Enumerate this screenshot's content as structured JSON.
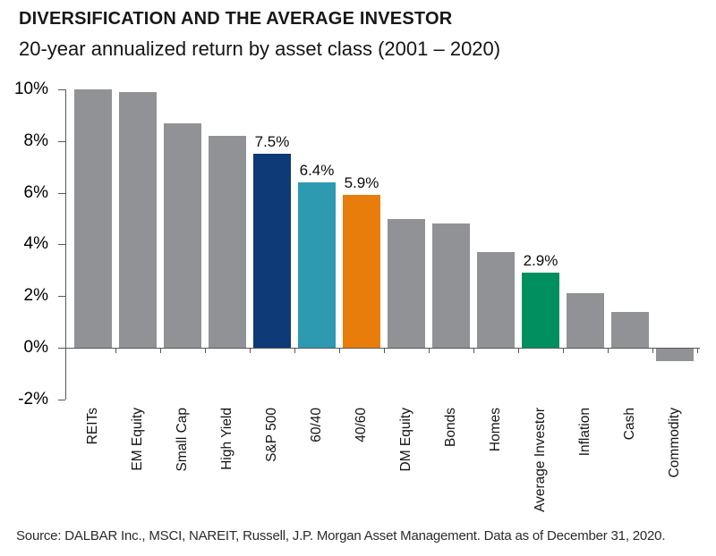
{
  "header": {
    "title": "DIVERSIFICATION AND THE AVERAGE INVESTOR",
    "subtitle": "20-year annualized return by asset class (2001 – 2020)"
  },
  "footer": {
    "source": "Source: DALBAR Inc., MSCI, NAREIT, Russell, J.P. Morgan Asset Management. Data as of December 31, 2020."
  },
  "colors": {
    "default_bar": "#909295",
    "sp500_navy": "#0e3a77",
    "sixty_forty_teal": "#2d9ab1",
    "forty_sixty_orange": "#e87d0c",
    "average_investor_green": "#008f5f",
    "axis": "#565759",
    "text": "#141414"
  },
  "chart_data": {
    "type": "bar",
    "title": "DIVERSIFICATION AND THE AVERAGE INVESTOR",
    "subtitle": "20-year annualized return by asset class (2001 – 2020)",
    "xlabel": "",
    "ylabel": "",
    "ylim": [
      -2,
      10
    ],
    "grid": false,
    "legend": false,
    "yticks": [
      {
        "value": 10,
        "label": "10%"
      },
      {
        "value": 8,
        "label": "8%"
      },
      {
        "value": 6,
        "label": "6%"
      },
      {
        "value": 4,
        "label": "4%"
      },
      {
        "value": 2,
        "label": "2%"
      },
      {
        "value": 0,
        "label": "0%"
      },
      {
        "value": -2,
        "label": "-2%"
      }
    ],
    "categories": [
      "REITs",
      "EM Equity",
      "Small Cap",
      "High Yield",
      "S&P 500",
      "60/40",
      "40/60",
      "DM Equity",
      "Bonds",
      "Homes",
      "Average Investor",
      "Inflation",
      "Cash",
      "Commodity"
    ],
    "values": [
      10.0,
      9.9,
      8.7,
      8.2,
      7.5,
      6.4,
      5.9,
      5.0,
      4.8,
      3.7,
      2.9,
      2.1,
      1.4,
      -0.5
    ],
    "data_labels": [
      null,
      null,
      null,
      null,
      "7.5%",
      "6.4%",
      "5.9%",
      null,
      null,
      null,
      "2.9%",
      null,
      null,
      null
    ],
    "bar_colors": [
      "#909295",
      "#909295",
      "#909295",
      "#909295",
      "#0e3a77",
      "#2d9ab1",
      "#e87d0c",
      "#909295",
      "#909295",
      "#909295",
      "#008f5f",
      "#909295",
      "#909295",
      "#909295"
    ]
  }
}
